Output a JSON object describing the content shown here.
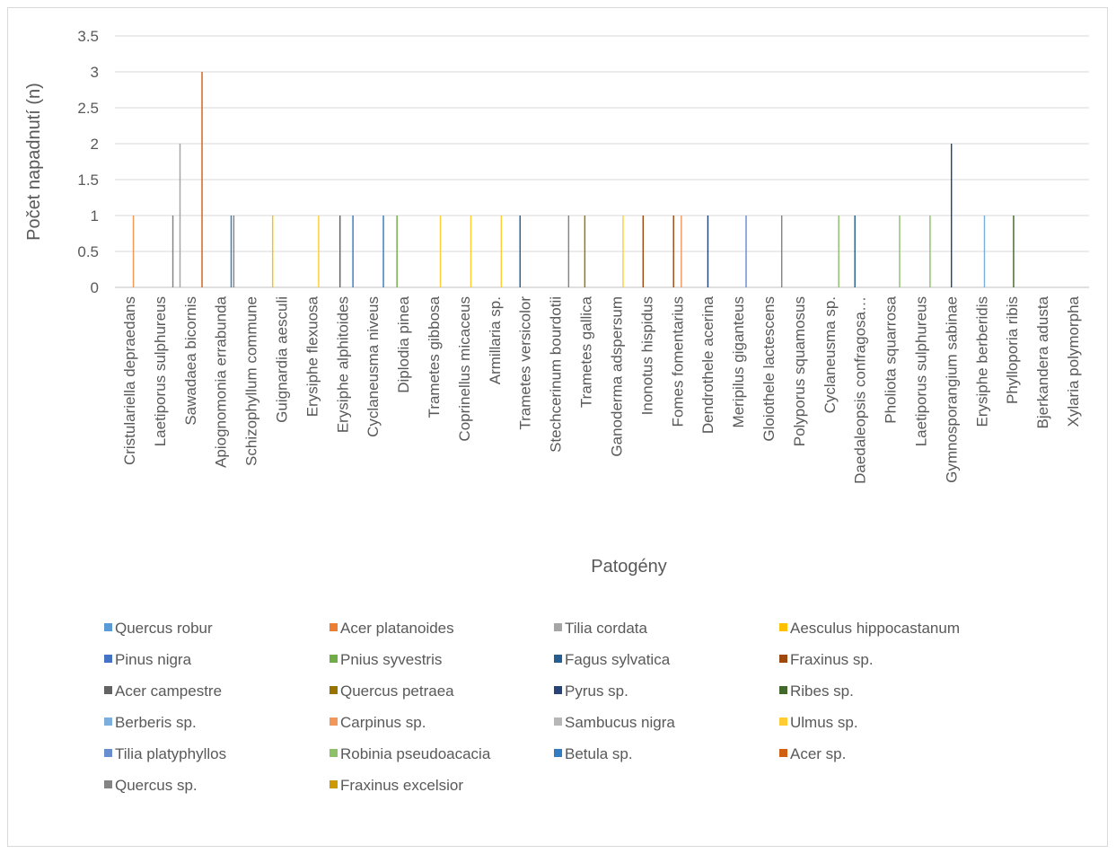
{
  "chart_data": {
    "type": "bar",
    "title": "",
    "xlabel": "Patogény",
    "ylabel": "Počet napadnutí (n)",
    "ylim": [
      0,
      3.5
    ],
    "yticks": [
      "0",
      "0.5",
      "1",
      "1.5",
      "2",
      "2.5",
      "3",
      "3.5"
    ],
    "grid": true,
    "legend_position": "bottom",
    "categories": [
      "Cristulariella depraedans",
      "Laetiporus sulphureus",
      "Sawadaea bicornis",
      "Apiognomonia errabunda",
      "Schizophyllum commune",
      "Guignardia aesculi",
      "Erysiphe flexuosa",
      "Erysiphe alphitoides",
      "Cyclaneusma niveus",
      "Diplodia pinea",
      "Trametes gibbosa",
      "Coprinellus micaceus",
      "Armillaria sp.",
      "Trametes versicolor",
      "Stechcerinum bourdotii",
      "Trametes gallica",
      "Ganoderma adspersum",
      "Inonotus hispidus",
      "Fomes fomentarius",
      "Dendrothele acerina",
      "Meripilus giganteus",
      "Gloiothele lactescens",
      "Polyporus squamosus",
      "Cyclaneusma sp.",
      "Daedaleopsis confragosa…",
      "Pholiota squarrosa",
      "Laetiporus sulphureus",
      "Gymnosporangium sabinae",
      "Erysiphe berberidis",
      "Phylloporia ribis",
      "Bjerkandera adusta",
      "Xylaria polymorpha"
    ],
    "series": [
      {
        "name": "Quercus robur",
        "color": "#5B9BD5",
        "values": [
          0,
          0,
          0,
          0,
          0,
          0,
          0,
          0,
          0,
          0,
          0,
          0,
          0,
          0,
          0,
          0,
          0,
          0,
          0,
          0,
          0,
          0,
          0,
          0,
          0,
          0,
          0,
          0,
          0,
          0,
          0,
          0
        ]
      },
      {
        "name": "Acer platanoides",
        "color": "#ED7D31",
        "values": [
          0,
          0,
          0,
          0,
          0,
          0,
          0,
          0,
          0,
          0,
          0,
          0,
          0,
          0,
          0,
          0,
          0,
          0,
          0,
          0,
          0,
          0,
          0,
          0,
          0,
          0,
          0,
          0,
          0,
          0,
          0,
          0
        ]
      },
      {
        "name": "Tilia cordata",
        "color": "#A5A5A5",
        "values": [
          0,
          0,
          2,
          0,
          0,
          0,
          0,
          0,
          0,
          0,
          0,
          0,
          0,
          0,
          0,
          0,
          0,
          0,
          0,
          0,
          0,
          0,
          0,
          0,
          0,
          0,
          0,
          0,
          0,
          0,
          0,
          0
        ]
      },
      {
        "name": "Aesculus hippocastanum",
        "color": "#FFC000",
        "values": [
          0,
          0,
          0,
          0,
          0,
          1,
          0,
          0,
          0,
          0,
          0,
          0,
          0,
          0,
          0,
          0,
          0,
          0,
          0,
          0,
          0,
          0,
          0,
          0,
          0,
          0,
          0,
          0,
          0,
          0,
          0,
          0
        ]
      },
      {
        "name": "Pinus nigra",
        "color": "#4472C4",
        "values": [
          0,
          0,
          0,
          0,
          0,
          0,
          0,
          0,
          0,
          0,
          0,
          0,
          0,
          0,
          0,
          0,
          0,
          0,
          0,
          0,
          0,
          0,
          0,
          0,
          0,
          0,
          0,
          0,
          0,
          0,
          0,
          0
        ]
      },
      {
        "name": "Pnius syvestris",
        "color": "#70AD47",
        "values": [
          0,
          0,
          0,
          0,
          0,
          0,
          0,
          0,
          0,
          1,
          0,
          0,
          0,
          0,
          0,
          0,
          0,
          0,
          0,
          0,
          0,
          0,
          0,
          0,
          0,
          0,
          0,
          0,
          0,
          0,
          0,
          0
        ]
      },
      {
        "name": "Fagus sylvatica",
        "color": "#255E91",
        "values": [
          0,
          0,
          0,
          0,
          0,
          0,
          0,
          0,
          0,
          0,
          0,
          0,
          0,
          1,
          0,
          0,
          0,
          0,
          0,
          0,
          0,
          0,
          0,
          0,
          1,
          0,
          0,
          0,
          0,
          0,
          0,
          0
        ]
      },
      {
        "name": "Fraxinus sp.",
        "color": "#9E480E",
        "values": [
          0,
          0,
          0,
          0,
          0,
          0,
          0,
          0,
          0,
          0,
          0,
          0,
          0,
          0,
          0,
          0,
          0,
          1,
          1,
          0,
          0,
          0,
          0,
          0,
          0,
          0,
          0,
          0,
          0,
          0,
          0,
          0
        ]
      },
      {
        "name": "Acer campestre",
        "color": "#636363",
        "values": [
          0,
          0,
          0,
          0,
          0,
          0,
          0,
          1,
          0,
          0,
          0,
          0,
          0,
          0,
          0,
          0,
          0,
          0,
          0,
          0,
          0,
          0,
          0,
          0,
          0,
          0,
          0,
          0,
          0,
          0,
          0,
          0
        ]
      },
      {
        "name": "Quercus petraea",
        "color": "#997300",
        "values": [
          0,
          0,
          0,
          0,
          0,
          0,
          0,
          0,
          0,
          0,
          0,
          0,
          0,
          0,
          0,
          1,
          0,
          0,
          0,
          0,
          0,
          0,
          0,
          0,
          0,
          0,
          0,
          0,
          0,
          0,
          0,
          0
        ]
      },
      {
        "name": "Pyrus sp.",
        "color": "#264478",
        "values": [
          0,
          0,
          0,
          0,
          0,
          0,
          0,
          0,
          0,
          0,
          0,
          0,
          0,
          0,
          0,
          0,
          0,
          0,
          0,
          1,
          0,
          0,
          0,
          0,
          0,
          0,
          0,
          2,
          0,
          0,
          0,
          0
        ]
      },
      {
        "name": "Ribes sp.",
        "color": "#43682B",
        "values": [
          0,
          0,
          0,
          0,
          0,
          0,
          0,
          0,
          0,
          0,
          0,
          0,
          0,
          0,
          0,
          0,
          0,
          0,
          0,
          0,
          0,
          0,
          0,
          0,
          0,
          0,
          0,
          0,
          0,
          1,
          0,
          0
        ]
      },
      {
        "name": "Berberis sp.",
        "color": "#7CAFDD",
        "values": [
          0,
          0,
          0,
          0,
          0,
          0,
          0,
          0,
          0,
          0,
          0,
          0,
          0,
          0,
          0,
          0,
          0,
          0,
          0,
          0,
          0,
          0,
          0,
          0,
          0,
          0,
          0,
          0,
          1,
          0,
          0,
          0
        ]
      },
      {
        "name": "Carpinus sp.",
        "color": "#F1975A",
        "values": [
          1,
          0,
          0,
          0,
          0,
          0,
          0,
          0,
          0,
          0,
          0,
          0,
          0,
          0,
          0,
          0,
          0,
          0,
          1,
          0,
          0,
          0,
          0,
          0,
          0,
          0,
          0,
          0,
          0,
          0,
          0,
          0
        ]
      },
      {
        "name": "Sambucus nigra",
        "color": "#B7B7B7",
        "values": [
          0,
          0,
          0,
          0,
          0,
          0,
          0,
          0,
          0,
          0,
          0,
          0,
          0,
          0,
          0,
          0,
          0,
          0,
          0,
          0,
          0,
          0,
          0,
          0,
          0,
          0,
          0,
          0,
          0,
          0,
          0,
          0
        ]
      },
      {
        "name": "Ulmus sp.",
        "color": "#FFCD33",
        "values": [
          0,
          0,
          0,
          0,
          0,
          0,
          1,
          0,
          0,
          0,
          1,
          1,
          1,
          0,
          0,
          0,
          1,
          0,
          0,
          0,
          0,
          0,
          0,
          0,
          0,
          0,
          0,
          0,
          0,
          0,
          0,
          0
        ]
      },
      {
        "name": "Tilia platyphyllos",
        "color": "#698ED0",
        "values": [
          0,
          0,
          0,
          0,
          0,
          0,
          0,
          0,
          0,
          0,
          0,
          0,
          0,
          0,
          0,
          0,
          0,
          0,
          0,
          0,
          1,
          0,
          0,
          0,
          0,
          0,
          0,
          0,
          0,
          0,
          0,
          0
        ]
      },
      {
        "name": "Robinia pseudoacacia",
        "color": "#8CC168",
        "values": [
          0,
          0,
          0,
          0,
          0,
          0,
          0,
          0,
          0,
          0,
          0,
          0,
          0,
          0,
          0,
          0,
          0,
          0,
          0,
          0,
          0,
          0,
          0,
          1,
          0,
          1,
          1,
          0,
          0,
          0,
          0,
          0
        ]
      },
      {
        "name": "Betula sp.",
        "color": "#327DC2",
        "values": [
          0,
          0,
          0,
          1,
          0,
          0,
          0,
          1,
          1,
          0,
          0,
          0,
          0,
          0,
          0,
          0,
          0,
          0,
          0,
          0,
          0,
          0,
          0,
          0,
          0,
          0,
          0,
          0,
          0,
          0,
          0,
          0
        ]
      },
      {
        "name": "Acer sp.",
        "color": "#D26012",
        "values": [
          0,
          0,
          3,
          0,
          0,
          0,
          0,
          0,
          0,
          0,
          0,
          0,
          0,
          0,
          0,
          0,
          0,
          0,
          0,
          0,
          0,
          0,
          0,
          0,
          0,
          0,
          0,
          0,
          0,
          0,
          0,
          0
        ]
      },
      {
        "name": "Quercus sp.",
        "color": "#848484",
        "values": [
          0,
          1,
          0,
          1,
          0,
          0,
          0,
          0,
          0,
          0,
          0,
          0,
          0,
          0,
          1,
          0,
          0,
          0,
          0,
          0,
          0,
          1,
          0,
          0,
          0,
          0,
          0,
          0,
          0,
          0,
          0,
          0
        ]
      },
      {
        "name": "Fraxinus excelsior",
        "color": "#CC9A00",
        "values": [
          0,
          0,
          0,
          0,
          0,
          0,
          0,
          0,
          0,
          0,
          0,
          0,
          0,
          0,
          0,
          0,
          0,
          0,
          0,
          0,
          0,
          0,
          0,
          0,
          0,
          0,
          0,
          0,
          0,
          0,
          0,
          0
        ]
      }
    ]
  }
}
